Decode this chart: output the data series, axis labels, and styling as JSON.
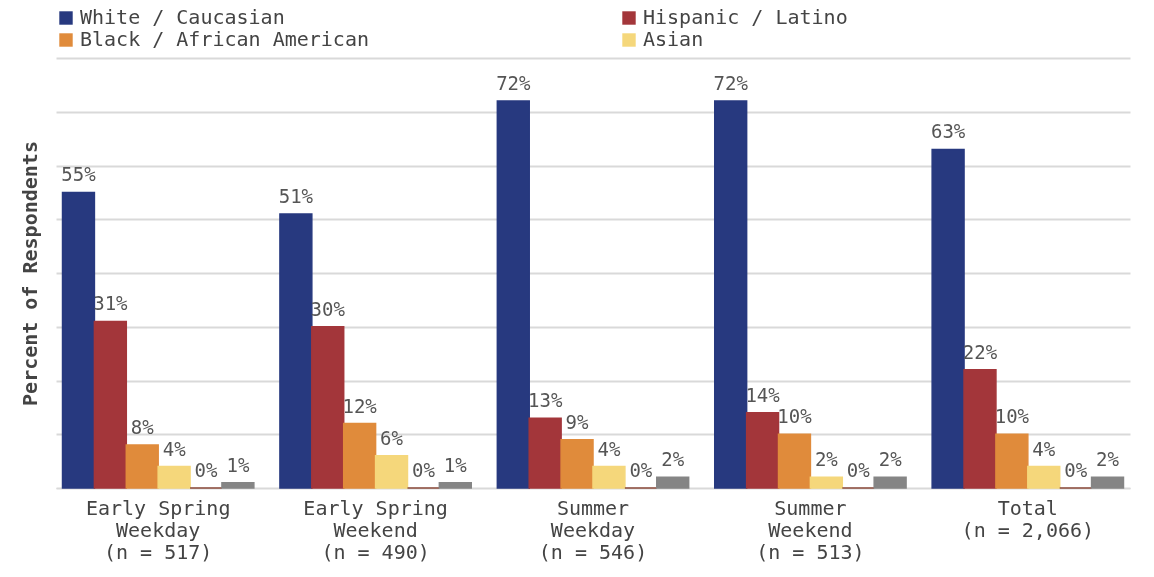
{
  "chart_data": {
    "type": "bar",
    "ylabel": "Percent of Respondents",
    "categories": [
      "Early Spring\nWeekday\n(n = 517)",
      "Early Spring\nWeekend\n(n = 490)",
      "Summer\nWeekday\n(n = 546)",
      "Summer\nWeekend\n(n = 513)",
      "Total\n(n = 2,066)"
    ],
    "series": [
      {
        "name": "White / Caucasian",
        "color": "#27397f",
        "values": [
          55,
          51,
          72,
          72,
          63
        ],
        "value_labels": [
          "55%",
          "51%",
          "72%",
          "72%",
          "63%"
        ]
      },
      {
        "name": "Hispanic / Latino",
        "color": "#a3363a",
        "values": [
          31,
          30,
          13,
          14,
          22
        ],
        "value_labels": [
          "31%",
          "30%",
          "13%",
          "14%",
          "22%"
        ]
      },
      {
        "name": "Black / African American",
        "color": "#e08b3b",
        "values": [
          8,
          12,
          9,
          10,
          10
        ],
        "value_labels": [
          "8%",
          "12%",
          "9%",
          "10%",
          "10%"
        ]
      },
      {
        "name": "Asian",
        "color": "#f5d77b",
        "values": [
          4,
          6,
          4,
          2,
          4
        ],
        "value_labels": [
          "4%",
          "6%",
          "4%",
          "2%",
          "4%"
        ]
      },
      {
        "color": "#8b4a3a",
        "values": [
          0,
          0,
          0,
          0,
          0
        ],
        "value_labels": [
          "0%",
          "0%",
          "0%",
          "0%",
          "0%"
        ]
      },
      {
        "color": "#858585",
        "values": [
          1,
          1,
          2,
          2,
          2
        ],
        "value_labels": [
          "1%",
          "1%",
          "2%",
          "2%",
          "2%"
        ]
      }
    ],
    "ylim": [
      0,
      80
    ],
    "yticks": [
      {
        "value": 0,
        "label": null
      },
      {
        "value": 10,
        "label": null
      },
      {
        "value": 20,
        "label": null
      },
      {
        "value": 30,
        "label": null
      },
      {
        "value": 40,
        "label": null
      },
      {
        "value": 50,
        "label": null
      },
      {
        "value": 60,
        "label": null
      },
      {
        "value": 70,
        "label": null
      },
      {
        "value": 80,
        "label": null
      }
    ],
    "grid": "y",
    "legend": "top left"
  }
}
